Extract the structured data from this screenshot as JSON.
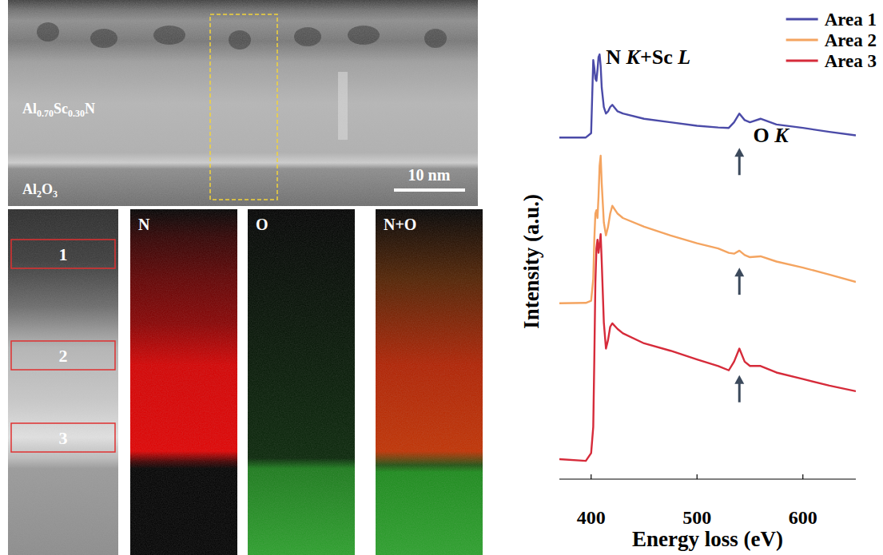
{
  "images": {
    "tem": {
      "labels": [
        "Al0.70Sc0.30N",
        "Al2O3"
      ],
      "scale_bar": "10 nm"
    },
    "maps": {
      "areas": [
        "1",
        "2",
        "3"
      ],
      "titles": [
        "N",
        "O",
        "N+O"
      ]
    }
  },
  "chart_data": {
    "type": "line",
    "x_label": "Energy loss (eV)",
    "y_label": "Intensity (a.u.)",
    "x": [
      370,
      395,
      400,
      402,
      403,
      404,
      405,
      406,
      407,
      408,
      409,
      410,
      412,
      414,
      416,
      418,
      420,
      425,
      430,
      450,
      475,
      500,
      520,
      530,
      535,
      540,
      545,
      550,
      560,
      575,
      600,
      625,
      650
    ],
    "series": [
      {
        "name": "Area 1",
        "color": "#4b4ba8",
        "values": [
          7.85,
          7.85,
          7.95,
          9.63,
          9.45,
          9.2,
          9.15,
          9.4,
          9.7,
          9.76,
          9.5,
          9.0,
          8.55,
          8.4,
          8.45,
          8.55,
          8.6,
          8.45,
          8.4,
          8.28,
          8.2,
          8.12,
          8.08,
          8.07,
          8.2,
          8.4,
          8.25,
          8.2,
          8.28,
          8.15,
          8.07,
          7.98,
          7.9
        ]
      },
      {
        "name": "Area 2",
        "color": "#f4a460",
        "values": [
          4.04,
          4.05,
          4.1,
          4.6,
          5.5,
          6.1,
          6.18,
          6.0,
          6.5,
          7.2,
          7.43,
          6.8,
          5.9,
          5.6,
          5.8,
          6.1,
          6.28,
          6.1,
          6.0,
          5.8,
          5.6,
          5.42,
          5.3,
          5.2,
          5.18,
          5.25,
          5.15,
          5.1,
          5.12,
          5.0,
          4.86,
          4.7,
          4.53
        ]
      },
      {
        "name": "Area 3",
        "color": "#d62b3a",
        "values": [
          0.46,
          0.42,
          0.6,
          1.2,
          2.75,
          4.5,
          5.3,
          5.5,
          5.2,
          5.4,
          5.63,
          5.0,
          3.6,
          3.0,
          3.2,
          3.5,
          3.58,
          3.45,
          3.35,
          3.12,
          2.95,
          2.75,
          2.6,
          2.5,
          2.7,
          3.0,
          2.7,
          2.6,
          2.6,
          2.45,
          2.3,
          2.15,
          2.02
        ]
      }
    ],
    "xlim": [
      370,
      650
    ],
    "xticks": [
      400,
      500,
      600
    ],
    "ylim": [
      0,
      10
    ],
    "tick_labels": "x",
    "legend": "upper right",
    "annotations": [
      {
        "text": "N K+Sc L",
        "x": 414,
        "y": 9.55
      },
      {
        "text": "O K",
        "x": 553,
        "y": 7.75
      }
    ],
    "arrows": [
      {
        "x": 540,
        "y": 7.61
      },
      {
        "x": 540,
        "y": 4.86
      },
      {
        "x": 540,
        "y": 2.39
      }
    ]
  }
}
